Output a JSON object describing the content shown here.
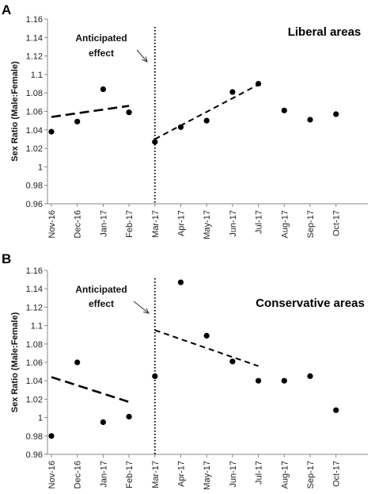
{
  "chart_data": [
    {
      "type": "scatter",
      "panel_label": "A",
      "title": "Liberal areas",
      "ylabel": "Sex Ratio (Male:Female)",
      "xlabel": "",
      "categories": [
        "Nov-16",
        "Dec-16",
        "Jan-17",
        "Feb-17",
        "Mar-17",
        "Apr-17",
        "May-17",
        "Jun-17",
        "Jul-17",
        "Aug-17",
        "Sep-17",
        "Oct-17"
      ],
      "values": [
        1.038,
        1.049,
        1.084,
        1.059,
        1.027,
        1.043,
        1.05,
        1.081,
        1.09,
        1.061,
        1.051,
        1.057
      ],
      "yticks": [
        "0.96",
        "0.98",
        "1",
        "1.02",
        "1.04",
        "1.06",
        "1.08",
        "1.1",
        "1.12",
        "1.14",
        "1.16"
      ],
      "ylim": [
        0.96,
        1.16
      ],
      "grid": false,
      "annotation": {
        "line1": "Anticipated",
        "line2": "effect"
      },
      "event_category": "Mar-17",
      "trend_lines": [
        {
          "from": [
            "Nov-16",
            1.054
          ],
          "to": [
            "Feb-17",
            1.066
          ],
          "style": "long-dash"
        },
        {
          "from": [
            "Mar-17",
            1.03
          ],
          "to": [
            "Jul-17",
            1.089
          ],
          "style": "short-dash"
        }
      ]
    },
    {
      "type": "scatter",
      "panel_label": "B",
      "title": "Conservative areas",
      "ylabel": "Sex Ratio (Male:Female)",
      "xlabel": "",
      "categories": [
        "Nov-16",
        "Dec-16",
        "Jan-17",
        "Feb-17",
        "Mar-17",
        "Apr-17",
        "May-17",
        "Jun-17",
        "Jul-17",
        "Aug-17",
        "Sep-17",
        "Oct-17"
      ],
      "values": [
        0.98,
        1.06,
        0.995,
        1.001,
        1.045,
        1.147,
        1.089,
        1.061,
        1.04,
        1.04,
        1.045,
        1.008
      ],
      "yticks": [
        "0.96",
        "0.98",
        "1",
        "1.02",
        "1.04",
        "1.06",
        "1.08",
        "1.1",
        "1.12",
        "1.14",
        "1.16"
      ],
      "ylim": [
        0.96,
        1.16
      ],
      "grid": false,
      "annotation": {
        "line1": "Anticipated",
        "line2": "effect"
      },
      "event_category": "Mar-17",
      "trend_lines": [
        {
          "from": [
            "Nov-16",
            1.044
          ],
          "to": [
            "Feb-17",
            1.017
          ],
          "style": "long-dash"
        },
        {
          "from": [
            "Mar-17",
            1.095
          ],
          "to": [
            "Jul-17",
            1.056
          ],
          "style": "short-dash"
        }
      ]
    }
  ]
}
